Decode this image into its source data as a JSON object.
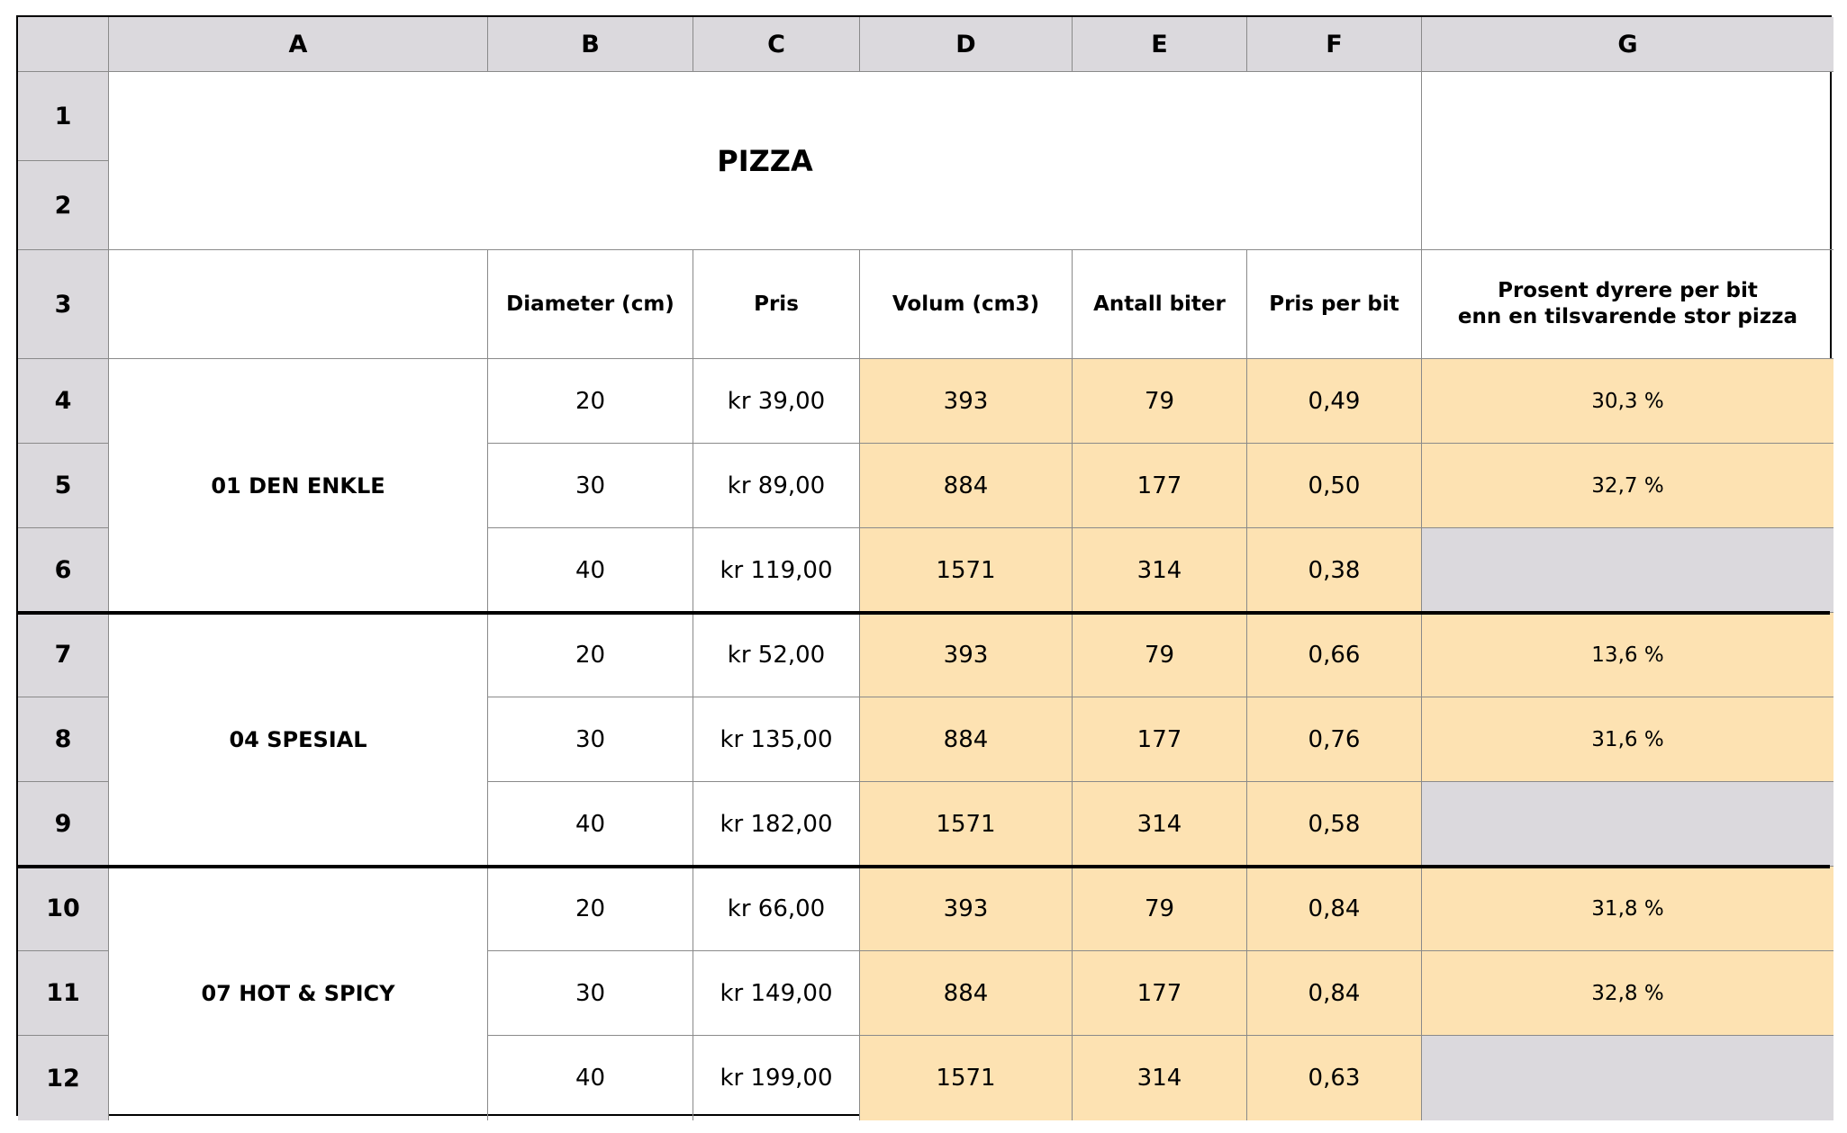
{
  "column_letters": [
    "A",
    "B",
    "C",
    "D",
    "E",
    "F",
    "G"
  ],
  "row_numbers": [
    "1",
    "2",
    "3",
    "4",
    "5",
    "6",
    "7",
    "8",
    "9",
    "10",
    "11",
    "12"
  ],
  "title": "PIZZA",
  "headers": {
    "diameter": "Diameter (cm)",
    "price": "Pris",
    "volume": "Volum (cm3)",
    "pieces": "Antall biter",
    "price_per_piece": "Pris per bit",
    "percent_line1": "Prosent dyrere per bit",
    "percent_line2": "enn en tilsvarende stor pizza"
  },
  "groups": [
    {
      "name": "01 DEN ENKLE",
      "rows": [
        {
          "diameter": "20",
          "price": "kr 39,00",
          "volume": "393",
          "pieces": "79",
          "ppb": "0,49",
          "pct": "30,3 %"
        },
        {
          "diameter": "30",
          "price": "kr 89,00",
          "volume": "884",
          "pieces": "177",
          "ppb": "0,50",
          "pct": "32,7 %"
        },
        {
          "diameter": "40",
          "price": "kr 119,00",
          "volume": "1571",
          "pieces": "314",
          "ppb": "0,38",
          "pct": ""
        }
      ]
    },
    {
      "name": "04 SPESIAL",
      "rows": [
        {
          "diameter": "20",
          "price": "kr 52,00",
          "volume": "393",
          "pieces": "79",
          "ppb": "0,66",
          "pct": "13,6 %"
        },
        {
          "diameter": "30",
          "price": "kr 135,00",
          "volume": "884",
          "pieces": "177",
          "ppb": "0,76",
          "pct": "31,6 %"
        },
        {
          "diameter": "40",
          "price": "kr 182,00",
          "volume": "1571",
          "pieces": "314",
          "ppb": "0,58",
          "pct": ""
        }
      ]
    },
    {
      "name": "07 HOT & SPICY",
      "rows": [
        {
          "diameter": "20",
          "price": "kr 66,00",
          "volume": "393",
          "pieces": "79",
          "ppb": "0,84",
          "pct": "31,8 %"
        },
        {
          "diameter": "30",
          "price": "kr 149,00",
          "volume": "884",
          "pieces": "177",
          "ppb": "0,84",
          "pct": "32,8 %"
        },
        {
          "diameter": "40",
          "price": "kr 199,00",
          "volume": "1571",
          "pieces": "314",
          "ppb": "0,63",
          "pct": ""
        }
      ]
    }
  ],
  "colors": {
    "header_bg": "#dbd9dd",
    "calculated_bg": "#fde2b2",
    "grid_line": "#8a8a8a",
    "border": "#000000"
  }
}
